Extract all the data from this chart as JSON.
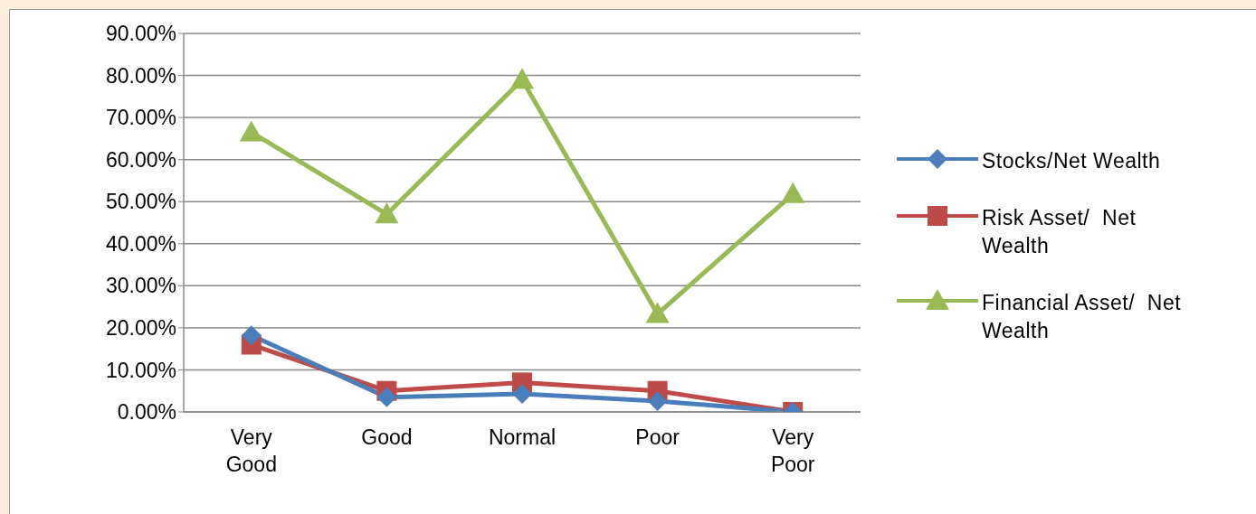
{
  "chart_data": {
    "type": "line",
    "categories": [
      "Very Good",
      "Good",
      "Normal",
      "Poor",
      "Very Poor"
    ],
    "series": [
      {
        "name": "Stocks/Net Wealth",
        "color": "#4a7ebb",
        "marker": "diamond",
        "values": [
          18.2,
          3.5,
          4.3,
          2.6,
          0
        ]
      },
      {
        "name": "Risk Asset/  Net Wealth",
        "color": "#be4b48",
        "marker": "square",
        "values": [
          16,
          5,
          7,
          5,
          0
        ]
      },
      {
        "name": "Financial Asset/  Net Wealth",
        "color": "#98b954",
        "marker": "triangle",
        "values": [
          66.5,
          47,
          79,
          23.3,
          51.8
        ]
      }
    ],
    "ylim": [
      0,
      90
    ],
    "yticks": [
      {
        "value": 0,
        "label": "0.00%"
      },
      {
        "value": 10,
        "label": "10.00%"
      },
      {
        "value": 20,
        "label": "20.00%"
      },
      {
        "value": 30,
        "label": "30.00%"
      },
      {
        "value": 40,
        "label": "40.00%"
      },
      {
        "value": 50,
        "label": "50.00%"
      },
      {
        "value": 60,
        "label": "60.00%"
      },
      {
        "value": 70,
        "label": "70.00%"
      },
      {
        "value": 80,
        "label": "80.00%"
      },
      {
        "value": 90,
        "label": "90.00%"
      }
    ],
    "grid": "y",
    "legend": "right",
    "line_style": "solid"
  }
}
